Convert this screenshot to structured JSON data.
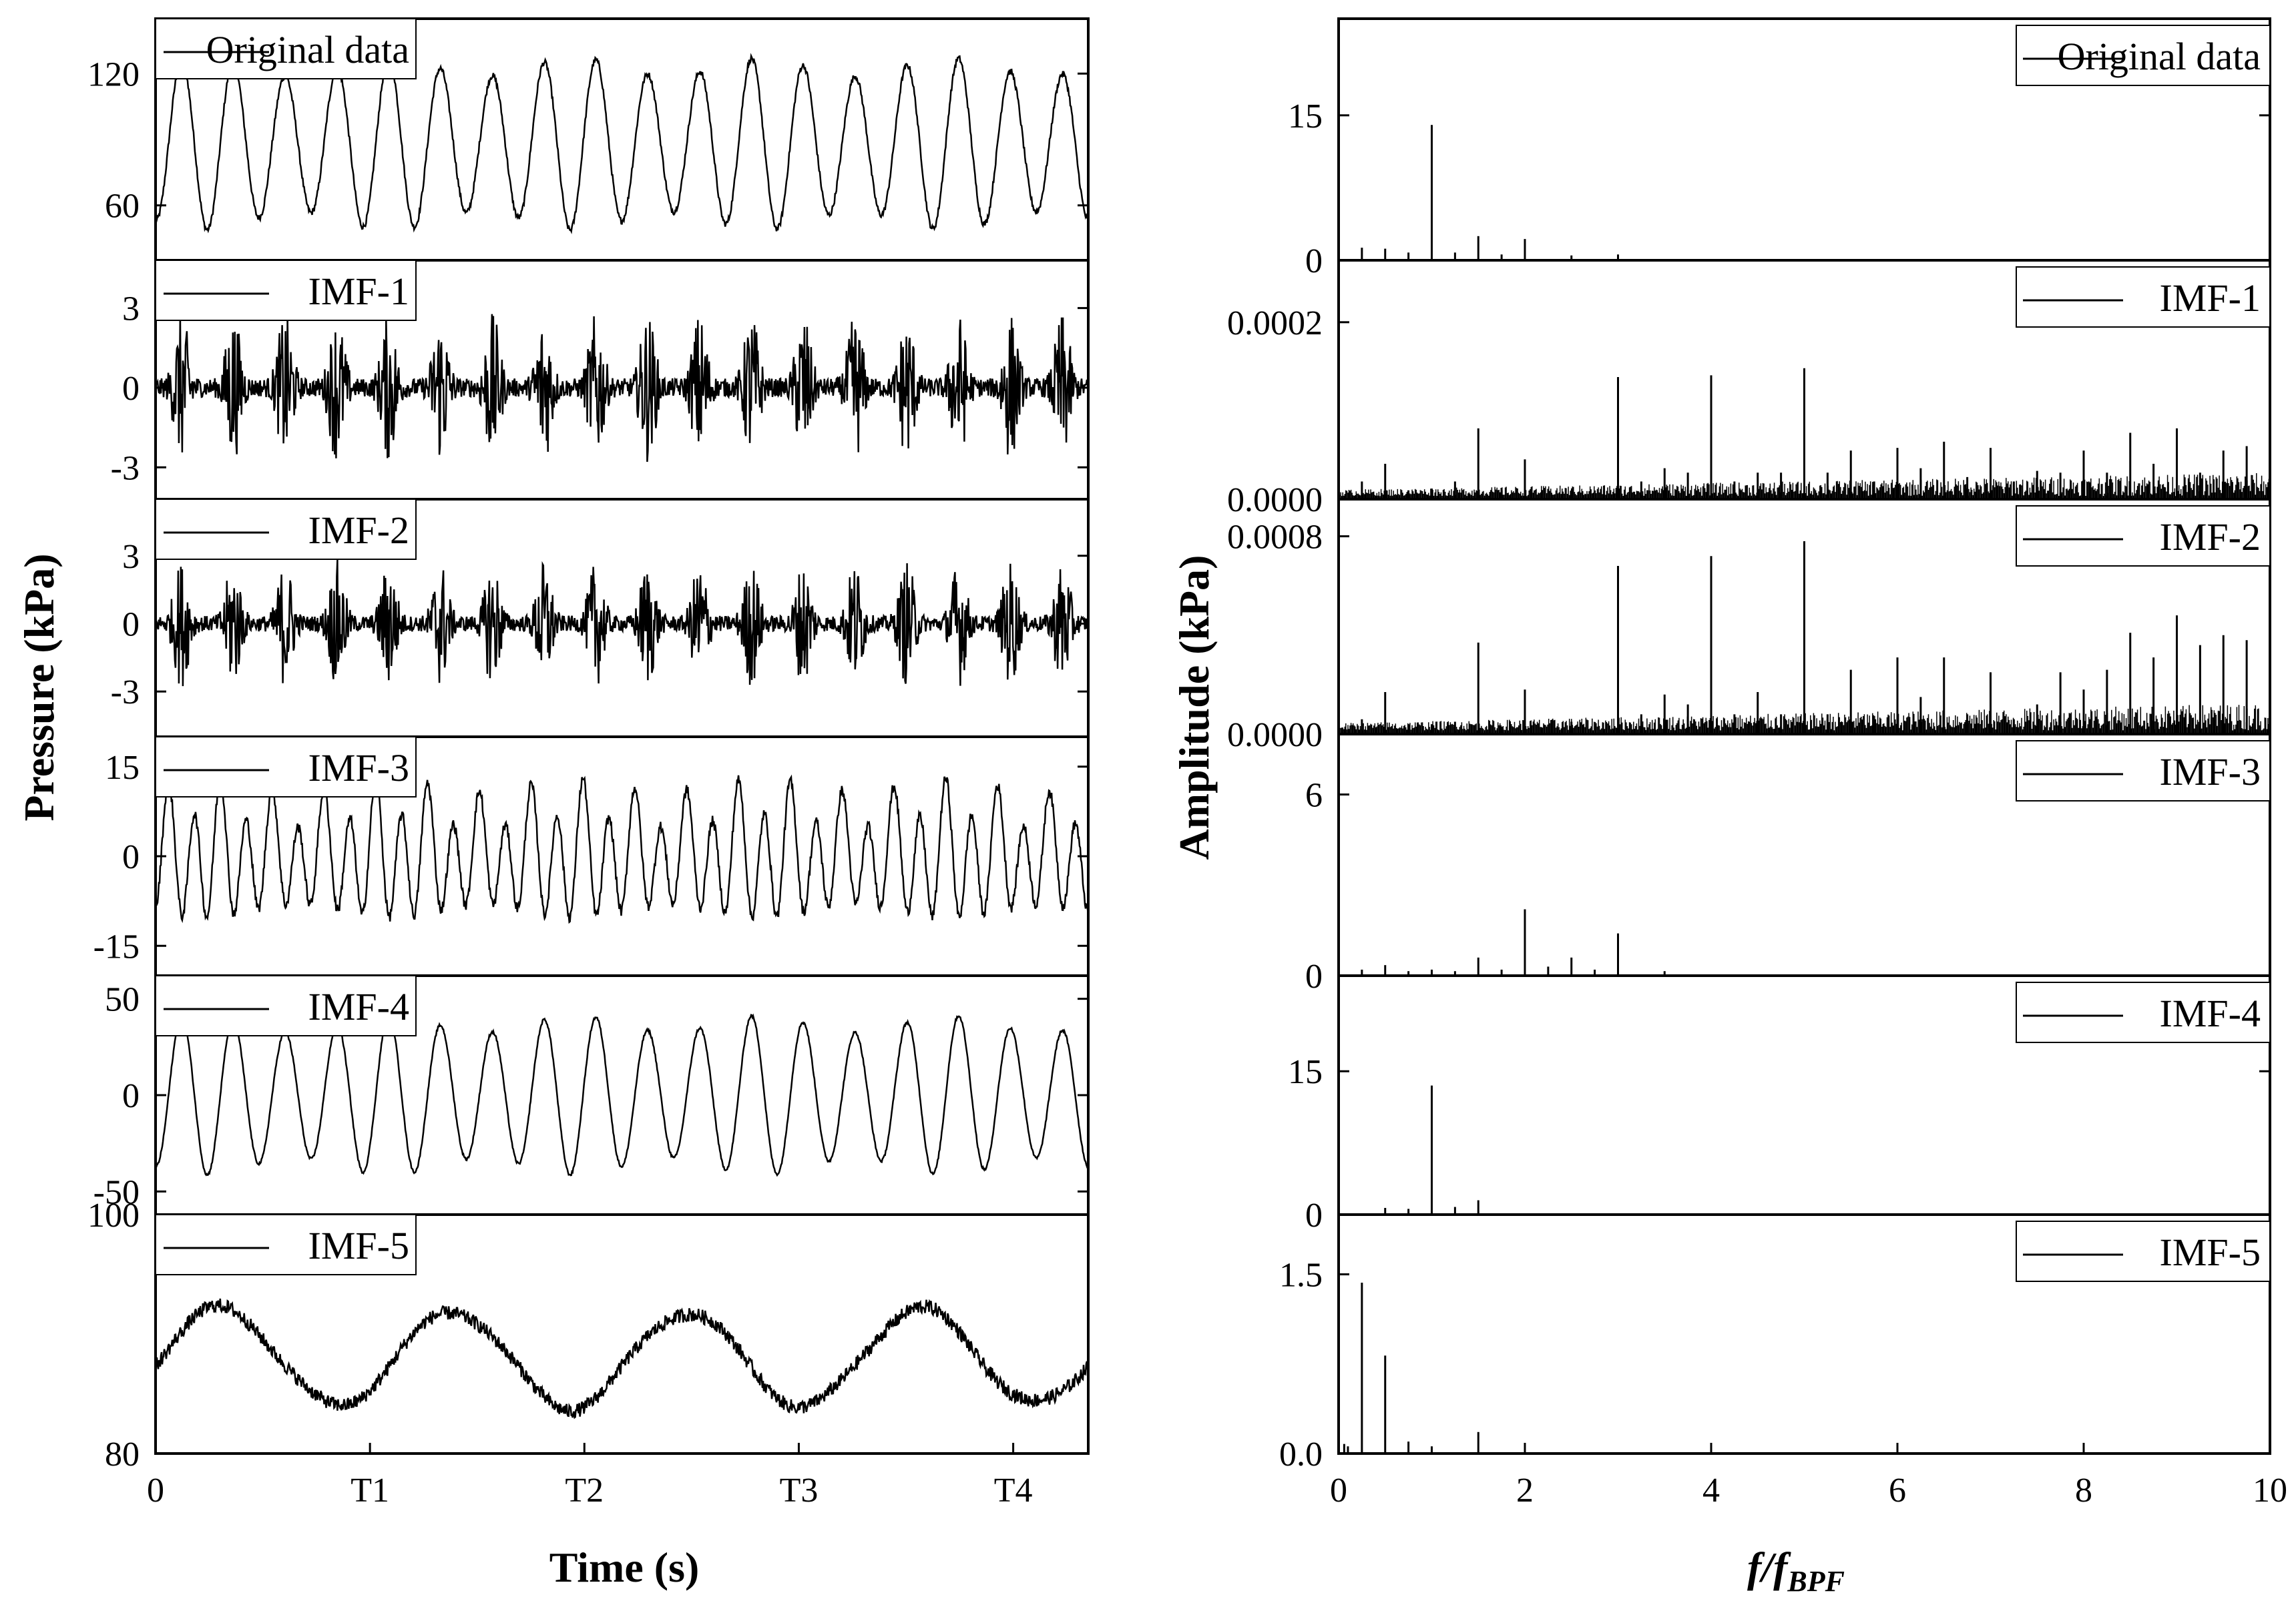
{
  "figure": {
    "left_ylabel": "Pressure (kPa)",
    "left_xlabel": "Time (s)",
    "right_ylabel": "Amplitude (kPa)",
    "right_xlabel_main": "f/f",
    "right_xlabel_sub": "BPF"
  },
  "chart_data": [
    {
      "type": "line",
      "panel": "time-domain",
      "series_name": "Original data",
      "x_ticks": [
        "0",
        "T1",
        "T2",
        "T3",
        "T4"
      ],
      "y_ticks": [
        "60",
        "120"
      ],
      "ylim": [
        35,
        145
      ],
      "cycles": 18,
      "mean": 88,
      "amplitude": 35,
      "noise": 0.04,
      "grid": false,
      "legend": "top-right"
    },
    {
      "type": "line",
      "panel": "time-domain",
      "series_name": "IMF-1",
      "y_ticks": [
        "-3",
        "0",
        "3"
      ],
      "ylim": [
        -4.2,
        4.8
      ],
      "mean": 0,
      "amplitude": 0.4,
      "noise": 1,
      "grid": false,
      "legend": "top-right"
    },
    {
      "type": "line",
      "panel": "time-domain",
      "series_name": "IMF-2",
      "y_ticks": [
        "-3",
        "0",
        "3"
      ],
      "ylim": [
        -5,
        5.5
      ],
      "mean": 0,
      "amplitude": 0.4,
      "noise": 1,
      "grid": false,
      "legend": "top-right"
    },
    {
      "type": "line",
      "panel": "time-domain",
      "series_name": "IMF-3",
      "y_ticks": [
        "-15",
        "0",
        "15"
      ],
      "ylim": [
        -20,
        20
      ],
      "cycles": 36,
      "mean": 0,
      "amplitude": 9,
      "noise": 0.1,
      "grid": false,
      "legend": "top-right"
    },
    {
      "type": "line",
      "panel": "time-domain",
      "series_name": "IMF-4",
      "y_ticks": [
        "-50",
        "0",
        "50"
      ],
      "ylim": [
        -62,
        62
      ],
      "cycles": 18,
      "mean": 0,
      "amplitude": 37,
      "noise": 0.02,
      "grid": false,
      "legend": "top-right"
    },
    {
      "type": "line",
      "panel": "time-domain",
      "series_name": "IMF-5",
      "y_ticks": [
        "80",
        "100"
      ],
      "ylim": [
        80,
        100
      ],
      "cycles": 4,
      "mean": 88,
      "amplitude": 4,
      "noise": 0.15,
      "grid": false,
      "legend": "top-right"
    },
    {
      "type": "bar",
      "panel": "spectrum",
      "series_name": "Original data",
      "x_ticks": [
        "0",
        "2",
        "4",
        "6",
        "8",
        "10"
      ],
      "xlim": [
        0,
        10
      ],
      "y_ticks": [
        "0",
        "15"
      ],
      "ylim": [
        0,
        25
      ],
      "peaks": [
        [
          0.25,
          1.3
        ],
        [
          0.5,
          1.2
        ],
        [
          0.75,
          0.8
        ],
        [
          1,
          14
        ],
        [
          1.25,
          0.8
        ],
        [
          1.5,
          2.5
        ],
        [
          1.75,
          0.6
        ],
        [
          2,
          2.2
        ],
        [
          2.5,
          0.5
        ],
        [
          3,
          0.6
        ]
      ],
      "legend": "top-right"
    },
    {
      "type": "bar",
      "panel": "spectrum",
      "series_name": "IMF-1",
      "y_ticks": [
        "0.0000",
        "0.0002"
      ],
      "ylim": [
        0,
        0.00027
      ],
      "peaks": [
        [
          0.25,
          2e-05
        ],
        [
          0.5,
          4e-05
        ],
        [
          0.75,
          1e-05
        ],
        [
          1,
          1.2e-05
        ],
        [
          1.25,
          2e-05
        ],
        [
          1.5,
          8e-05
        ],
        [
          1.75,
          1e-05
        ],
        [
          2,
          4.5e-05
        ],
        [
          2.5,
          1e-05
        ],
        [
          3,
          0.000138
        ],
        [
          3.25,
          2e-05
        ],
        [
          3.5,
          3.5e-05
        ],
        [
          3.75,
          3e-05
        ],
        [
          4,
          0.00014
        ],
        [
          4.25,
          2e-05
        ],
        [
          4.5,
          3e-05
        ],
        [
          4.75,
          3e-05
        ],
        [
          5,
          0.000148
        ],
        [
          5.25,
          3e-05
        ],
        [
          5.5,
          5.5e-05
        ],
        [
          5.75,
          2e-05
        ],
        [
          6,
          5.8e-05
        ],
        [
          6.25,
          3.5e-05
        ],
        [
          6.5,
          6.5e-05
        ],
        [
          6.75,
          2.5e-05
        ],
        [
          7,
          5.8e-05
        ],
        [
          7.25,
          2e-05
        ],
        [
          7.5,
          3.2e-05
        ],
        [
          7.75,
          3e-05
        ],
        [
          8,
          5.5e-05
        ],
        [
          8.25,
          3e-05
        ],
        [
          8.5,
          7.5e-05
        ],
        [
          8.75,
          4e-05
        ],
        [
          9,
          8e-05
        ],
        [
          9.25,
          3e-05
        ],
        [
          9.5,
          5.5e-05
        ],
        [
          9.75,
          6e-05
        ]
      ],
      "noise_floor": 1.2e-05,
      "legend": "top-right"
    },
    {
      "type": "bar",
      "panel": "spectrum",
      "series_name": "IMF-2",
      "y_ticks": [
        "0.0000",
        "0.0008"
      ],
      "ylim": [
        0,
        0.00095
      ],
      "peaks": [
        [
          0.25,
          6e-05
        ],
        [
          0.5,
          0.00017
        ],
        [
          0.75,
          4e-05
        ],
        [
          1,
          4e-05
        ],
        [
          1.25,
          5e-05
        ],
        [
          1.5,
          0.00037
        ],
        [
          1.75,
          3e-05
        ],
        [
          2,
          0.00018
        ],
        [
          2.5,
          5e-05
        ],
        [
          3,
          0.00068
        ],
        [
          3.25,
          8e-05
        ],
        [
          3.5,
          0.00016
        ],
        [
          3.75,
          0.00012
        ],
        [
          4,
          0.00072
        ],
        [
          4.25,
          8e-05
        ],
        [
          4.5,
          0.00017
        ],
        [
          4.75,
          8e-05
        ],
        [
          5,
          0.00078
        ],
        [
          5.25,
          8e-05
        ],
        [
          5.5,
          0.00026
        ],
        [
          5.75,
          6e-05
        ],
        [
          6,
          0.00031
        ],
        [
          6.25,
          0.00015
        ],
        [
          6.5,
          0.00031
        ],
        [
          6.75,
          8e-05
        ],
        [
          7,
          0.00025
        ],
        [
          7.25,
          6e-05
        ],
        [
          7.5,
          0.00012
        ],
        [
          7.75,
          0.00025
        ],
        [
          8,
          0.00018
        ],
        [
          8.25,
          0.00026
        ],
        [
          8.5,
          0.00041
        ],
        [
          8.75,
          0.00031
        ],
        [
          9,
          0.00048
        ],
        [
          9.25,
          0.00036
        ],
        [
          9.5,
          0.0004
        ],
        [
          9.75,
          0.00038
        ]
      ],
      "noise_floor": 5e-05,
      "legend": "top-right"
    },
    {
      "type": "bar",
      "panel": "spectrum",
      "series_name": "IMF-3",
      "y_ticks": [
        "0",
        "6"
      ],
      "ylim": [
        0,
        8
      ],
      "peaks": [
        [
          0.25,
          0.2
        ],
        [
          0.5,
          0.35
        ],
        [
          0.75,
          0.15
        ],
        [
          1,
          0.2
        ],
        [
          1.25,
          0.15
        ],
        [
          1.5,
          0.6
        ],
        [
          1.75,
          0.2
        ],
        [
          2,
          2.2
        ],
        [
          2.25,
          0.3
        ],
        [
          2.5,
          0.6
        ],
        [
          2.75,
          0.2
        ],
        [
          3,
          1.4
        ],
        [
          3.5,
          0.15
        ]
      ],
      "legend": "top-right"
    },
    {
      "type": "bar",
      "panel": "spectrum",
      "series_name": "IMF-4",
      "y_ticks": [
        "0",
        "15"
      ],
      "ylim": [
        0,
        25
      ],
      "peaks": [
        [
          0.5,
          0.7
        ],
        [
          0.75,
          0.6
        ],
        [
          1,
          13.5
        ],
        [
          1.25,
          0.8
        ],
        [
          1.5,
          1.5
        ]
      ],
      "legend": "top-right"
    },
    {
      "type": "bar",
      "panel": "spectrum",
      "series_name": "IMF-5",
      "y_ticks": [
        "0.0",
        "1.5"
      ],
      "ylim": [
        0,
        2.0
      ],
      "peaks": [
        [
          0.06,
          0.08
        ],
        [
          0.1,
          0.06
        ],
        [
          0.25,
          1.43
        ],
        [
          0.5,
          0.82
        ],
        [
          0.75,
          0.1
        ],
        [
          1,
          0.06
        ],
        [
          1.5,
          0.18
        ],
        [
          2,
          0.05
        ]
      ],
      "legend": "top-right"
    }
  ]
}
